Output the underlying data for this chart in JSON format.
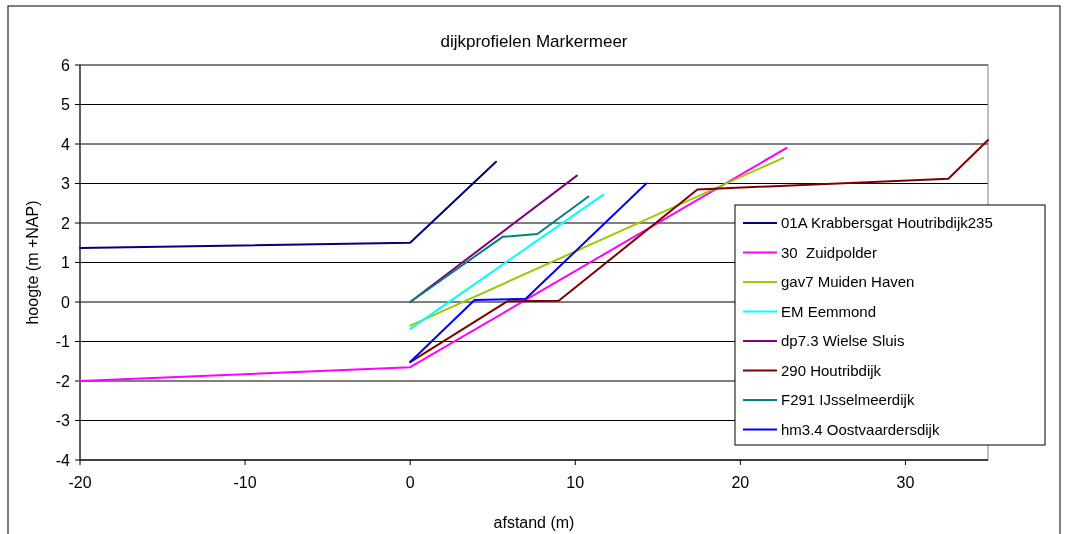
{
  "chart_data": {
    "type": "line",
    "title": "dijkprofielen Markermeer",
    "xlabel": "afstand (m)",
    "ylabel": "hoogte (m +NAP)",
    "xlim": [
      -20,
      35
    ],
    "xticks": [
      -20,
      -10,
      0,
      10,
      20,
      30
    ],
    "ylim": [
      -4,
      6
    ],
    "yticks": [
      -4,
      -3,
      -2,
      -1,
      0,
      1,
      2,
      3,
      4,
      5,
      6
    ],
    "grid": "y",
    "legend": "right",
    "marker": "none",
    "line_style": "solid",
    "series": [
      {
        "name": "01A Krabbersgat Houtribdijk235",
        "color": "#000080",
        "x": [
          -20,
          0,
          5.2
        ],
        "values": [
          1.37,
          1.5,
          3.55
        ]
      },
      {
        "name": "30  Zuidpolder",
        "color": "#ff00ff",
        "x": [
          -20,
          0,
          22.8
        ],
        "values": [
          -2,
          -1.65,
          3.9
        ]
      },
      {
        "name": "gav7 Muiden Haven",
        "color": "#99cc00",
        "x": [
          0,
          22.6
        ],
        "values": [
          -0.6,
          3.65
        ]
      },
      {
        "name": "EM Eemmond",
        "color": "#00ffff",
        "x": [
          0,
          11.7
        ],
        "values": [
          -0.68,
          2.72
        ]
      },
      {
        "name": "dp7.3 Wielse Sluis",
        "color": "#800080",
        "x": [
          0,
          10.1
        ],
        "values": [
          0,
          3.2
        ]
      },
      {
        "name": "290 Houtribdijk",
        "color": "#800000",
        "x": [
          0,
          5.9,
          9,
          17.4,
          32.6,
          35
        ],
        "values": [
          -1.52,
          0.02,
          0.03,
          2.85,
          3.12,
          4.1
        ]
      },
      {
        "name": "F291 IJsselmeerdijk",
        "color": "#008080",
        "x": [
          0,
          5.6,
          7.7,
          10.8
        ],
        "values": [
          0,
          1.65,
          1.72,
          2.67
        ]
      },
      {
        "name": "hm3.4 Oostvaardersdijk",
        "color": "#0000ff",
        "x": [
          0,
          3.9,
          7,
          14.3
        ],
        "values": [
          -1.52,
          0.05,
          0.08,
          3
        ]
      }
    ]
  }
}
